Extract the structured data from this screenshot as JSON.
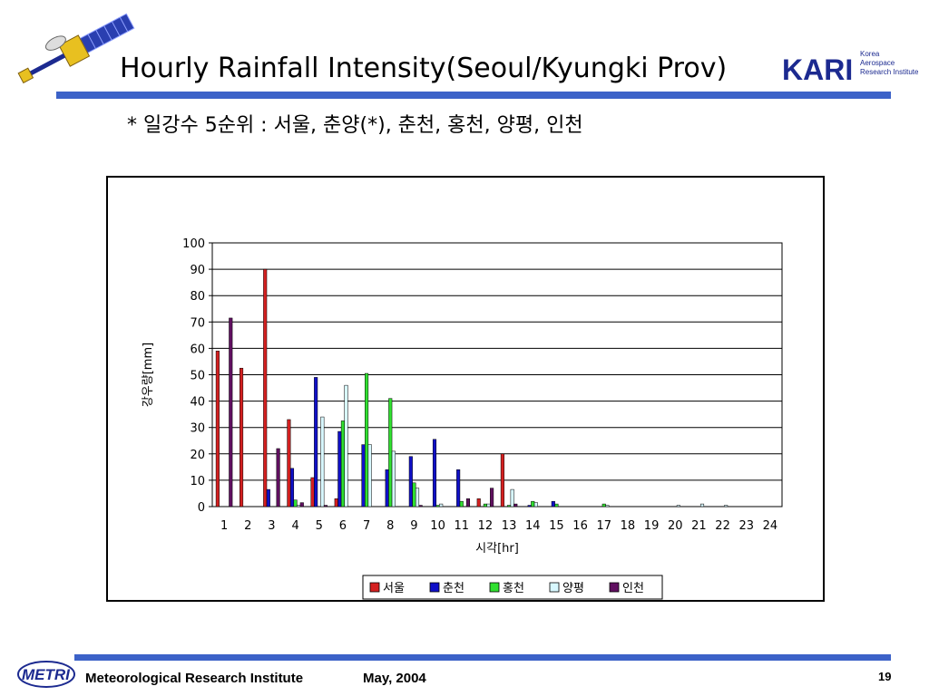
{
  "slide": {
    "title": "Hourly Rainfall Intensity(Seoul/Kyungki Prov)",
    "subtitle": "* 일강수 5순위 : 서울, 춘양(*), 춘천, 홍천, 양평, 인천",
    "logo_text": "KARI",
    "logo_sub": [
      "Korea",
      "Aerospace",
      "Research Institute"
    ],
    "accent_color": "#3c62c8"
  },
  "footer": {
    "logo_text": "METRI",
    "org": "Meteorological Research Institute",
    "date": "May, 2004",
    "page": "19"
  },
  "chart_data": {
    "type": "bar",
    "title": "",
    "xlabel": "시각[hr]",
    "ylabel": "강우량[mm]",
    "ylim": [
      0,
      100
    ],
    "yticks": [
      0,
      10,
      20,
      30,
      40,
      50,
      60,
      70,
      80,
      90,
      100
    ],
    "grid": true,
    "legend_position": "bottom",
    "categories": [
      "1",
      "2",
      "3",
      "4",
      "5",
      "6",
      "7",
      "8",
      "9",
      "10",
      "11",
      "12",
      "13",
      "14",
      "15",
      "16",
      "17",
      "18",
      "19",
      "20",
      "21",
      "22",
      "23",
      "24"
    ],
    "series": [
      {
        "name": "서울",
        "color": "#d42020",
        "values": [
          59,
          52.5,
          90,
          33,
          11,
          3,
          0,
          0,
          0,
          0,
          0,
          3,
          20,
          0,
          0,
          0,
          0,
          0,
          0,
          0,
          0,
          0,
          0,
          0
        ]
      },
      {
        "name": "춘천",
        "color": "#1010c8",
        "values": [
          0,
          0,
          6.5,
          14.5,
          49,
          28.5,
          23.5,
          14,
          19,
          25.5,
          14,
          0,
          0,
          0.5,
          2,
          0,
          0,
          0,
          0,
          0,
          0,
          0,
          0,
          0
        ]
      },
      {
        "name": "홍천",
        "color": "#30e030",
        "values": [
          0,
          0,
          0,
          2.5,
          0,
          32.5,
          50.5,
          41,
          9,
          0.5,
          2,
          1,
          0.5,
          2,
          1,
          0,
          1,
          0,
          0,
          0,
          0,
          0,
          0,
          0
        ]
      },
      {
        "name": "양평",
        "color": "#d8f8ff",
        "values": [
          0,
          0,
          0,
          0.5,
          34,
          46,
          23.5,
          21,
          7,
          1,
          0,
          1,
          6.5,
          1.5,
          0,
          0,
          0.5,
          0,
          0,
          0.5,
          1,
          0.5,
          0,
          0
        ]
      },
      {
        "name": "인천",
        "color": "#601060",
        "values": [
          71.5,
          0,
          22,
          1.5,
          0.5,
          0,
          0,
          0,
          0.5,
          0,
          3,
          7,
          1,
          0,
          0,
          0,
          0,
          0,
          0,
          0,
          0,
          0,
          0,
          0
        ]
      }
    ]
  }
}
